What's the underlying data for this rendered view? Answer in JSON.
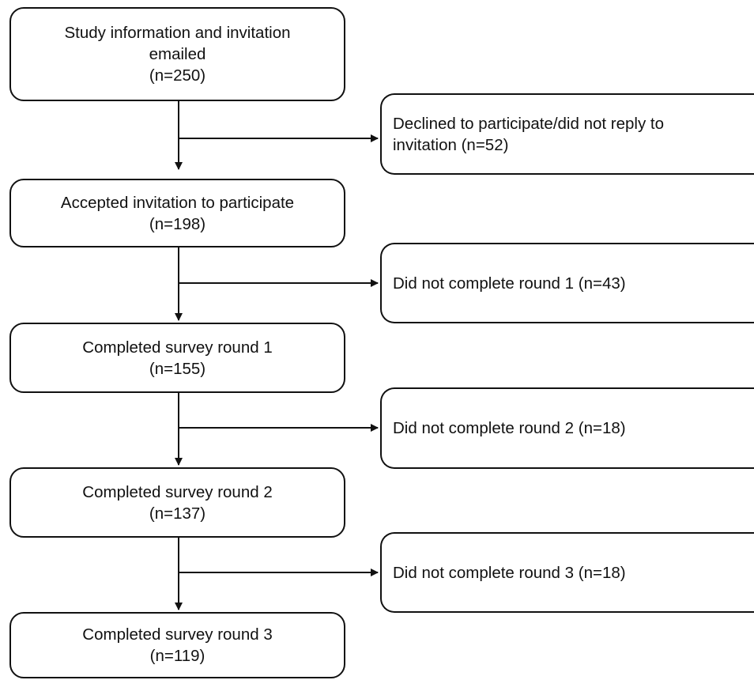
{
  "flowchart": {
    "main_steps": [
      {
        "lines": [
          "Study information and invitation",
          "emailed",
          "(n=250)"
        ]
      },
      {
        "lines": [
          "Accepted invitation to participate",
          "(n=198)"
        ]
      },
      {
        "lines": [
          "Completed survey round 1",
          "(n=155)"
        ]
      },
      {
        "lines": [
          "Completed survey round 2",
          "(n=137)"
        ]
      },
      {
        "lines": [
          "Completed survey round 3",
          "(n=119)"
        ]
      }
    ],
    "exclusions": [
      {
        "lines": [
          "Declined to participate/did not reply to",
          "invitation (n=52)"
        ]
      },
      {
        "lines": [
          "Did not complete round 1 (n=43)"
        ]
      },
      {
        "lines": [
          "Did not complete round 2 (n=18)"
        ]
      },
      {
        "lines": [
          "Did not complete round 3 (n=18)"
        ]
      }
    ]
  }
}
